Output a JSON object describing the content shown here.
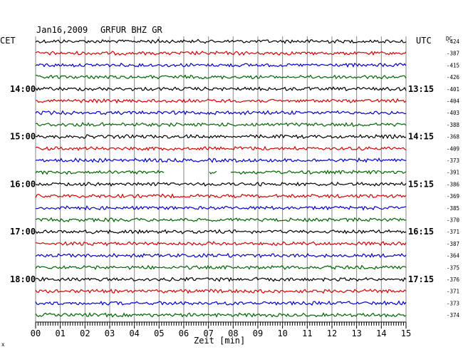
{
  "header": {
    "date": "Jan16,2009",
    "station": "GRFUR BHZ GR",
    "left_zone": "CET",
    "right_zone": "UTC",
    "dc_label": "DC"
  },
  "chart_data": {
    "type": "line",
    "title": "Jan16,2009   GRFUR BHZ GR",
    "xlabel": "Zeit [min]",
    "x_ticks": [
      "00",
      "01",
      "02",
      "03",
      "04",
      "05",
      "06",
      "07",
      "08",
      "09",
      "10",
      "11",
      "12",
      "13",
      "14",
      "15"
    ],
    "xlim": [
      0,
      15
    ],
    "trace_colors": [
      "#000000",
      "#d40000",
      "#0000c8",
      "#006400"
    ],
    "cet_hour_labels": [
      {
        "row": 4,
        "text": "14:00"
      },
      {
        "row": 8,
        "text": "15:00"
      },
      {
        "row": 12,
        "text": "16:00"
      },
      {
        "row": 16,
        "text": "17:00"
      },
      {
        "row": 20,
        "text": "18:00"
      }
    ],
    "utc_hour_labels": [
      {
        "row": 4,
        "text": "13:15"
      },
      {
        "row": 8,
        "text": "14:15"
      },
      {
        "row": 12,
        "text": "15:15"
      },
      {
        "row": 16,
        "text": "16:15"
      },
      {
        "row": 20,
        "text": "17:15"
      }
    ],
    "dc_offsets": [
      "-424",
      "-387",
      "-415",
      "-426",
      "-401",
      "-404",
      "-403",
      "-388",
      "-368",
      "-409",
      "-373",
      "-391",
      "-386",
      "-369",
      "-385",
      "-370",
      "-371",
      "-387",
      "-364",
      "-375",
      "-376",
      "-371",
      "-373",
      "-374"
    ],
    "gaps": [
      {
        "row": 11,
        "from_min": 5.2,
        "to_min": 7.0
      },
      {
        "row": 11,
        "from_min": 7.35,
        "to_min": 7.9
      }
    ],
    "grid": true
  }
}
